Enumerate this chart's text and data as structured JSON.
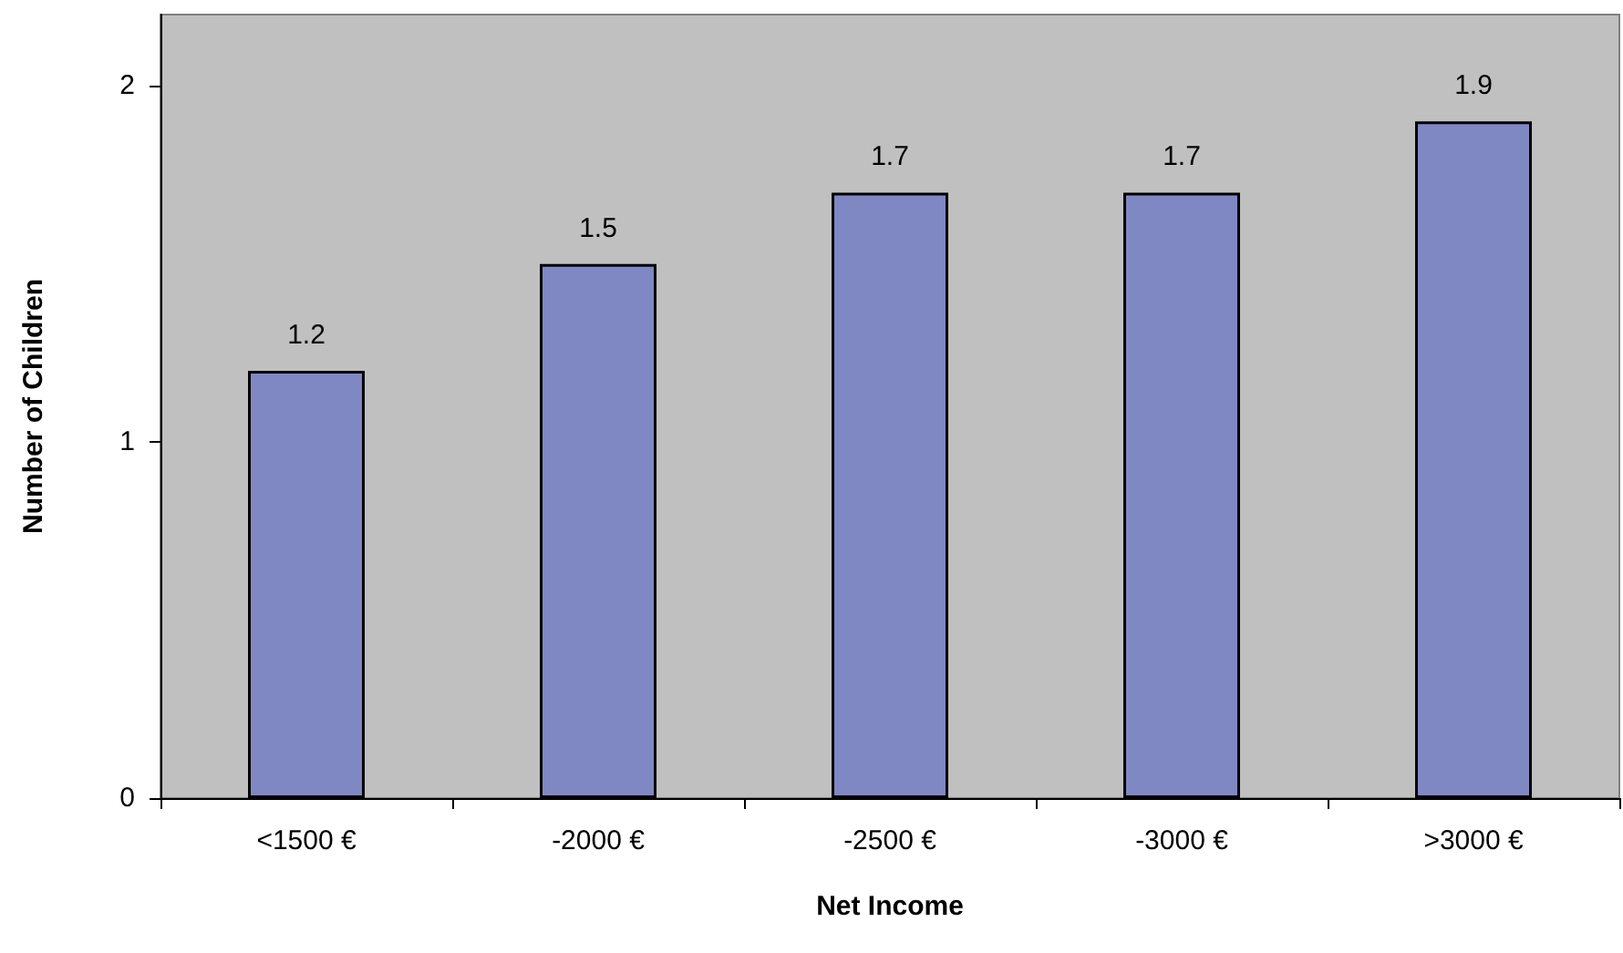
{
  "chart_data": {
    "type": "bar",
    "xlabel": "Net Income",
    "ylabel": "Number of Children",
    "categories": [
      "<1500 €",
      "-2000 €",
      "-2500 €",
      "-3000 €",
      ">3000 €"
    ],
    "values": [
      1.2,
      1.5,
      1.7,
      1.7,
      1.9
    ],
    "color": "#8088c4",
    "ylim": [
      0,
      2.2
    ],
    "yticks": [
      0,
      1,
      2
    ],
    "grid": false,
    "data_labels": true
  }
}
